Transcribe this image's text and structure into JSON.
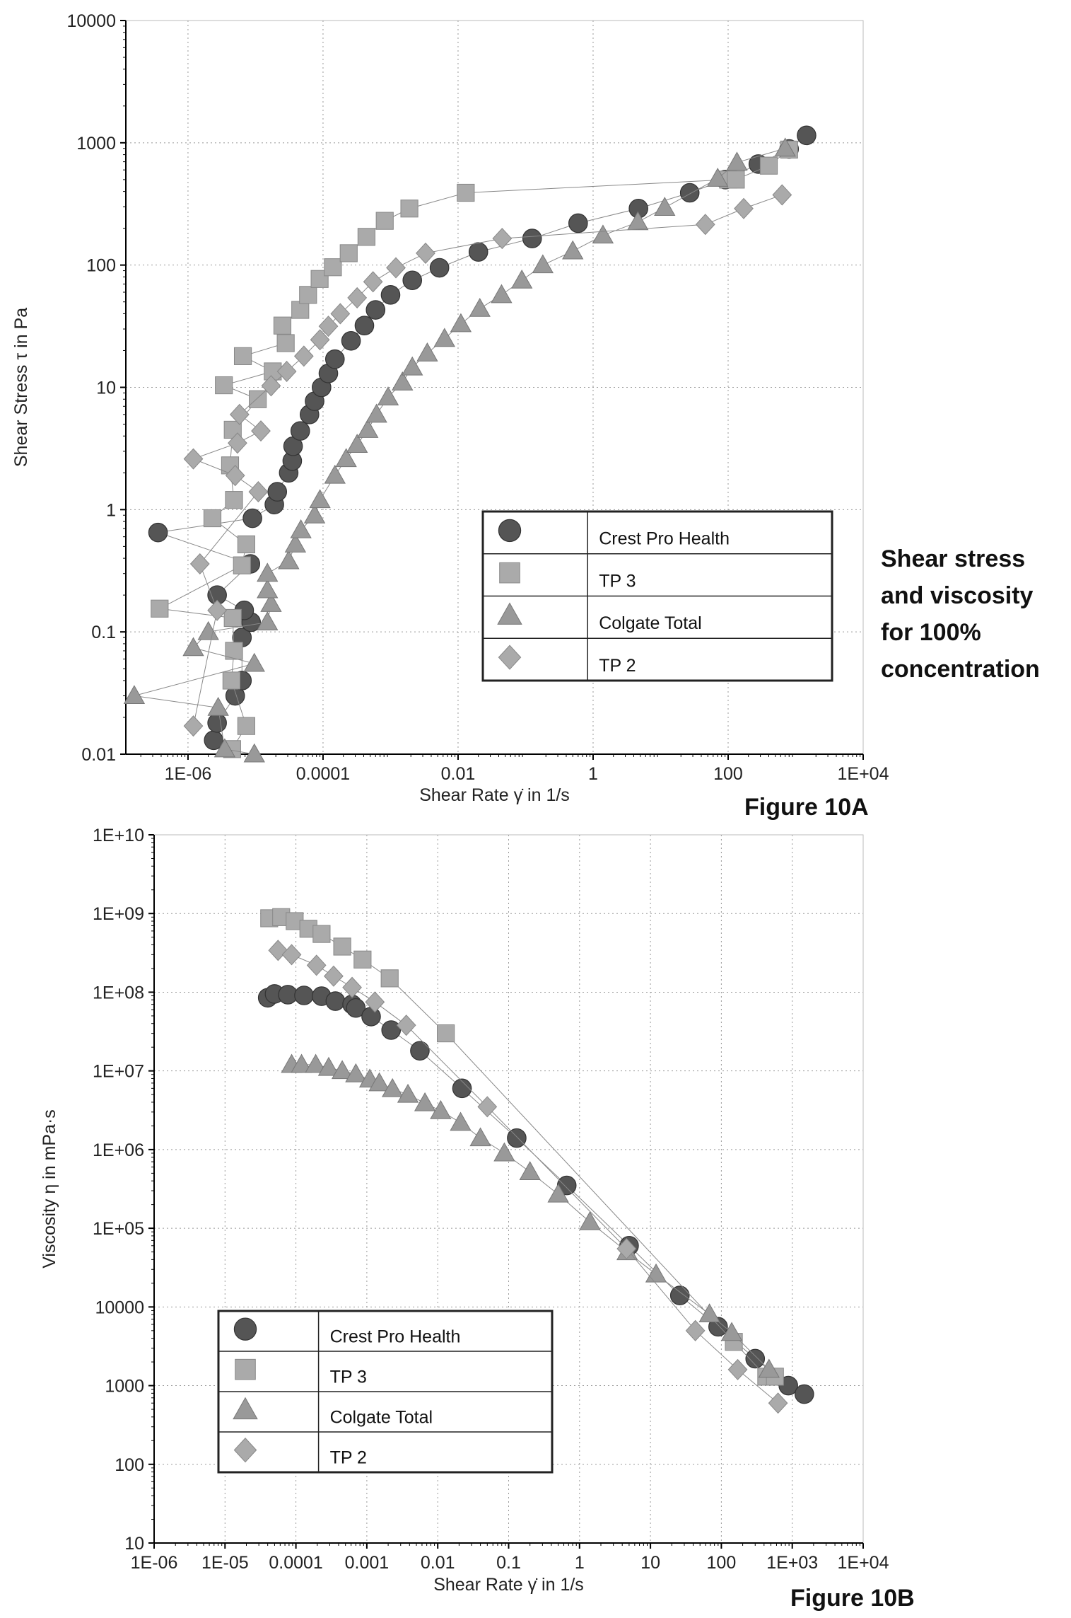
{
  "side_note": [
    "Shear stress",
    "and viscosity",
    "for 100%",
    "concentration"
  ],
  "chart_data": [
    {
      "type": "scatter",
      "figure_label": "Figure 10A",
      "xlabel": "Shear Rate γ̇ in 1/s",
      "ylabel": "Shear Stress τ in Pa",
      "xscale": "log",
      "yscale": "log",
      "xlim": [
        1.2e-07,
        10000
      ],
      "ylim": [
        0.01,
        10000
      ],
      "xticks": [
        1e-06,
        0.0001,
        0.01,
        1,
        100,
        10000
      ],
      "xtick_labels": [
        "1E-06",
        "0.0001",
        "0.01",
        "1",
        "100",
        "1E+04"
      ],
      "yticks": [
        10000,
        1000,
        100,
        10,
        1,
        0.1,
        0.01
      ],
      "ytick_labels": [
        "10000",
        "1000",
        "100",
        "10",
        "1",
        "0.1",
        "0.01"
      ],
      "grid": true,
      "legend_placement": "center-right",
      "series": [
        {
          "name": "Crest Pro Health",
          "marker": "circle",
          "color": "#555555",
          "points": [
            [
              2.4e-06,
              0.013
            ],
            [
              2.7e-06,
              0.018
            ],
            [
              5e-06,
              0.03
            ],
            [
              6.3e-06,
              0.04
            ],
            [
              6.3e-06,
              0.09
            ],
            [
              8.6e-06,
              0.12
            ],
            [
              6.8e-06,
              0.15
            ],
            [
              2.7e-06,
              0.2
            ],
            [
              8.4e-06,
              0.36
            ],
            [
              3.6e-07,
              0.65
            ],
            [
              9e-06,
              0.85
            ],
            [
              1.9e-05,
              1.1
            ],
            [
              2.1e-05,
              1.4
            ],
            [
              3.1e-05,
              2
            ],
            [
              3.5e-05,
              2.5
            ],
            [
              3.6e-05,
              3.3
            ],
            [
              4.6e-05,
              4.4
            ],
            [
              6.3e-05,
              6
            ],
            [
              7.5e-05,
              7.7
            ],
            [
              9.5e-05,
              10
            ],
            [
              0.00012,
              13
            ],
            [
              0.00015,
              17
            ],
            [
              0.00026,
              24
            ],
            [
              0.00041,
              32
            ],
            [
              0.0006,
              43
            ],
            [
              0.001,
              57
            ],
            [
              0.0021,
              75
            ],
            [
              0.0053,
              95
            ],
            [
              0.02,
              128
            ],
            [
              0.125,
              165
            ],
            [
              0.6,
              220
            ],
            [
              4.7,
              290
            ],
            [
              27,
              390
            ],
            [
              91,
              500
            ],
            [
              280,
              670
            ],
            [
              800,
              890
            ],
            [
              1450,
              1150
            ]
          ]
        },
        {
          "name": "TP 3",
          "marker": "square",
          "color": "#aaaaaa",
          "points": [
            [
              4.5e-06,
              0.011
            ],
            [
              7.3e-06,
              0.017
            ],
            [
              4.4e-06,
              0.04
            ],
            [
              4.8e-06,
              0.07
            ],
            [
              4.6e-06,
              0.13
            ],
            [
              3.8e-07,
              0.155
            ],
            [
              6.3e-06,
              0.35
            ],
            [
              7.3e-06,
              0.52
            ],
            [
              2.3e-06,
              0.85
            ],
            [
              4.8e-06,
              1.2
            ],
            [
              4.2e-06,
              2.3
            ],
            [
              4.6e-06,
              4.5
            ],
            [
              1.08e-05,
              8
            ],
            [
              3.4e-06,
              10.4
            ],
            [
              1.8e-05,
              13.5
            ],
            [
              6.5e-06,
              18
            ],
            [
              2.8e-05,
              23
            ],
            [
              2.5e-05,
              32
            ],
            [
              4.6e-05,
              43
            ],
            [
              6e-05,
              57
            ],
            [
              8.9e-05,
              77
            ],
            [
              0.00014,
              96
            ],
            [
              0.00024,
              125
            ],
            [
              0.00044,
              170
            ],
            [
              0.00082,
              230
            ],
            [
              0.0019,
              290
            ],
            [
              0.013,
              390
            ],
            [
              100,
              500
            ],
            [
              130,
              500
            ],
            [
              400,
              650
            ],
            [
              800,
              880
            ]
          ]
        },
        {
          "name": "Colgate Total",
          "marker": "triangle",
          "color": "#999999",
          "points": [
            [
              9.6e-06,
              0.01
            ],
            [
              3.5e-06,
              0.011
            ],
            [
              2.8e-06,
              0.024
            ],
            [
              1.6e-07,
              0.03
            ],
            [
              9.6e-06,
              0.055
            ],
            [
              1.2e-06,
              0.074
            ],
            [
              2e-06,
              0.1
            ],
            [
              1.5e-05,
              0.12
            ],
            [
              1.7e-05,
              0.17
            ],
            [
              1.5e-05,
              0.22
            ],
            [
              1.5e-05,
              0.3
            ],
            [
              3.1e-05,
              0.38
            ],
            [
              3.9e-05,
              0.52
            ],
            [
              4.7e-05,
              0.68
            ],
            [
              7.5e-05,
              0.9
            ],
            [
              9e-05,
              1.2
            ],
            [
              0.00015,
              1.9
            ],
            [
              0.00022,
              2.6
            ],
            [
              0.00032,
              3.4
            ],
            [
              0.00046,
              4.5
            ],
            [
              0.00062,
              6
            ],
            [
              0.00092,
              8.3
            ],
            [
              0.0015,
              11
            ],
            [
              0.0021,
              14.6
            ],
            [
              0.0035,
              19
            ],
            [
              0.0063,
              25
            ],
            [
              0.011,
              33
            ],
            [
              0.021,
              44
            ],
            [
              0.044,
              57
            ],
            [
              0.088,
              75
            ],
            [
              0.18,
              100
            ],
            [
              0.5,
              130
            ],
            [
              1.4,
              175
            ],
            [
              4.6,
              225
            ],
            [
              11.5,
              295
            ],
            [
              70,
              510
            ],
            [
              135,
              690
            ],
            [
              700,
              900
            ]
          ]
        },
        {
          "name": "TP 2",
          "marker": "diamond",
          "color": "#aaaaaa",
          "points": [
            [
              1.2e-06,
              0.017
            ],
            [
              2.7e-06,
              0.15
            ],
            [
              1.5e-06,
              0.36
            ],
            [
              1.1e-05,
              1.4
            ],
            [
              5e-06,
              1.9
            ],
            [
              1.2e-06,
              2.6
            ],
            [
              5.4e-06,
              3.5
            ],
            [
              1.2e-05,
              4.4
            ],
            [
              5.8e-06,
              6
            ],
            [
              1.7e-05,
              10.3
            ],
            [
              2.9e-05,
              13.5
            ],
            [
              5.2e-05,
              18
            ],
            [
              9e-05,
              24.5
            ],
            [
              0.00012,
              31.6
            ],
            [
              0.00018,
              40
            ],
            [
              0.00032,
              54
            ],
            [
              0.00055,
              73
            ],
            [
              0.0012,
              95
            ],
            [
              0.0033,
              125
            ],
            [
              0.045,
              165
            ],
            [
              46,
              215
            ],
            [
              170,
              290
            ],
            [
              630,
              375
            ]
          ]
        }
      ]
    },
    {
      "type": "scatter",
      "figure_label": "Figure 10B",
      "xlabel": "Shear Rate γ̇ in 1/s",
      "ylabel": "Viscosity η in mPa·s",
      "xscale": "log",
      "yscale": "log",
      "xlim": [
        1e-06,
        10000
      ],
      "ylim": [
        10,
        10000000000.0
      ],
      "xticks": [
        1e-06,
        1e-05,
        0.0001,
        0.001,
        0.01,
        0.1,
        1,
        10,
        100,
        1000,
        10000
      ],
      "xtick_labels": [
        "1E-06",
        "1E-05",
        "0.0001",
        "0.001",
        "0.01",
        "0.1",
        "1",
        "10",
        "100",
        "1E+03",
        "1E+04"
      ],
      "yticks": [
        10000000000.0,
        1000000000.0,
        100000000.0,
        10000000.0,
        1000000.0,
        100000.0,
        10000,
        1000,
        100,
        10
      ],
      "ytick_labels": [
        "1E+10",
        "1E+09",
        "1E+08",
        "1E+07",
        "1E+06",
        "1E+05",
        "10000",
        "1000",
        "100",
        "10"
      ],
      "grid": true,
      "legend_placement": "lower-left",
      "series": [
        {
          "name": "Crest Pro Health",
          "marker": "circle",
          "color": "#555555",
          "points": [
            [
              4e-05,
              85000000.0
            ],
            [
              5e-05,
              95000000.0
            ],
            [
              7.7e-05,
              93000000.0
            ],
            [
              0.00013,
              91000000.0
            ],
            [
              0.00023,
              89000000.0
            ],
            [
              0.00036,
              77000000.0
            ],
            [
              0.00062,
              70000000.0
            ],
            [
              0.0007,
              63000000.0
            ],
            [
              0.00115,
              49000000.0
            ],
            [
              0.0022,
              33000000.0
            ],
            [
              0.0056,
              18000000.0
            ],
            [
              0.022,
              6000000.0
            ],
            [
              0.13,
              1400000.0
            ],
            [
              0.66,
              350000.0
            ],
            [
              5,
              60000.0
            ],
            [
              26,
              14000.0
            ],
            [
              90,
              5600
            ],
            [
              300,
              2200
            ],
            [
              880,
              1000
            ],
            [
              1480,
              780
            ]
          ]
        },
        {
          "name": "TP 3",
          "marker": "square",
          "color": "#aaaaaa",
          "points": [
            [
              4.2e-05,
              870000000.0
            ],
            [
              6.2e-05,
              900000000.0
            ],
            [
              9.6e-05,
              800000000.0
            ],
            [
              0.00015,
              640000000.0
            ],
            [
              0.00023,
              550000000.0
            ],
            [
              0.00045,
              380000000.0
            ],
            [
              0.00087,
              260000000.0
            ],
            [
              0.0021,
              150000000.0
            ],
            [
              0.013,
              30000000.0
            ],
            [
              150,
              3600
            ],
            [
              430,
              1300
            ],
            [
              570,
              1300
            ]
          ]
        },
        {
          "name": "Colgate Total",
          "marker": "triangle",
          "color": "#999999",
          "points": [
            [
              8.7e-05,
              12000000.0
            ],
            [
              0.00012,
              12000000.0
            ],
            [
              0.00019,
              12000000.0
            ],
            [
              0.00029,
              11000000.0
            ],
            [
              0.00045,
              10000000.0
            ],
            [
              0.0007,
              9100000.0
            ],
            [
              0.0011,
              7800000.0
            ],
            [
              0.0015,
              7000000.0
            ],
            [
              0.0023,
              5900000.0
            ],
            [
              0.0038,
              5000000.0
            ],
            [
              0.0066,
              3900000.0
            ],
            [
              0.011,
              3100000.0
            ],
            [
              0.021,
              2200000.0
            ],
            [
              0.04,
              1400000.0
            ],
            [
              0.087,
              900000.0
            ],
            [
              0.2,
              520000.0
            ],
            [
              0.5,
              270000.0
            ],
            [
              1.4,
              120000.0
            ],
            [
              4.7,
              50000.0
            ],
            [
              12,
              26000.0
            ],
            [
              68,
              8100
            ],
            [
              140,
              4700
            ],
            [
              470,
              1600
            ]
          ]
        },
        {
          "name": "TP 2",
          "marker": "diamond",
          "color": "#aaaaaa",
          "points": [
            [
              5.6e-05,
              340000000.0
            ],
            [
              8.7e-05,
              300000000.0
            ],
            [
              0.000195,
              220000000.0
            ],
            [
              0.00034,
              160000000.0
            ],
            [
              0.00062,
              115000000.0
            ],
            [
              0.0013,
              75000000.0
            ],
            [
              0.0036,
              38000000.0
            ],
            [
              0.05,
              3500000.0
            ],
            [
              4.6,
              55000.0
            ],
            [
              43,
              5000
            ],
            [
              170,
              1600
            ],
            [
              630,
              600
            ]
          ]
        }
      ]
    }
  ]
}
